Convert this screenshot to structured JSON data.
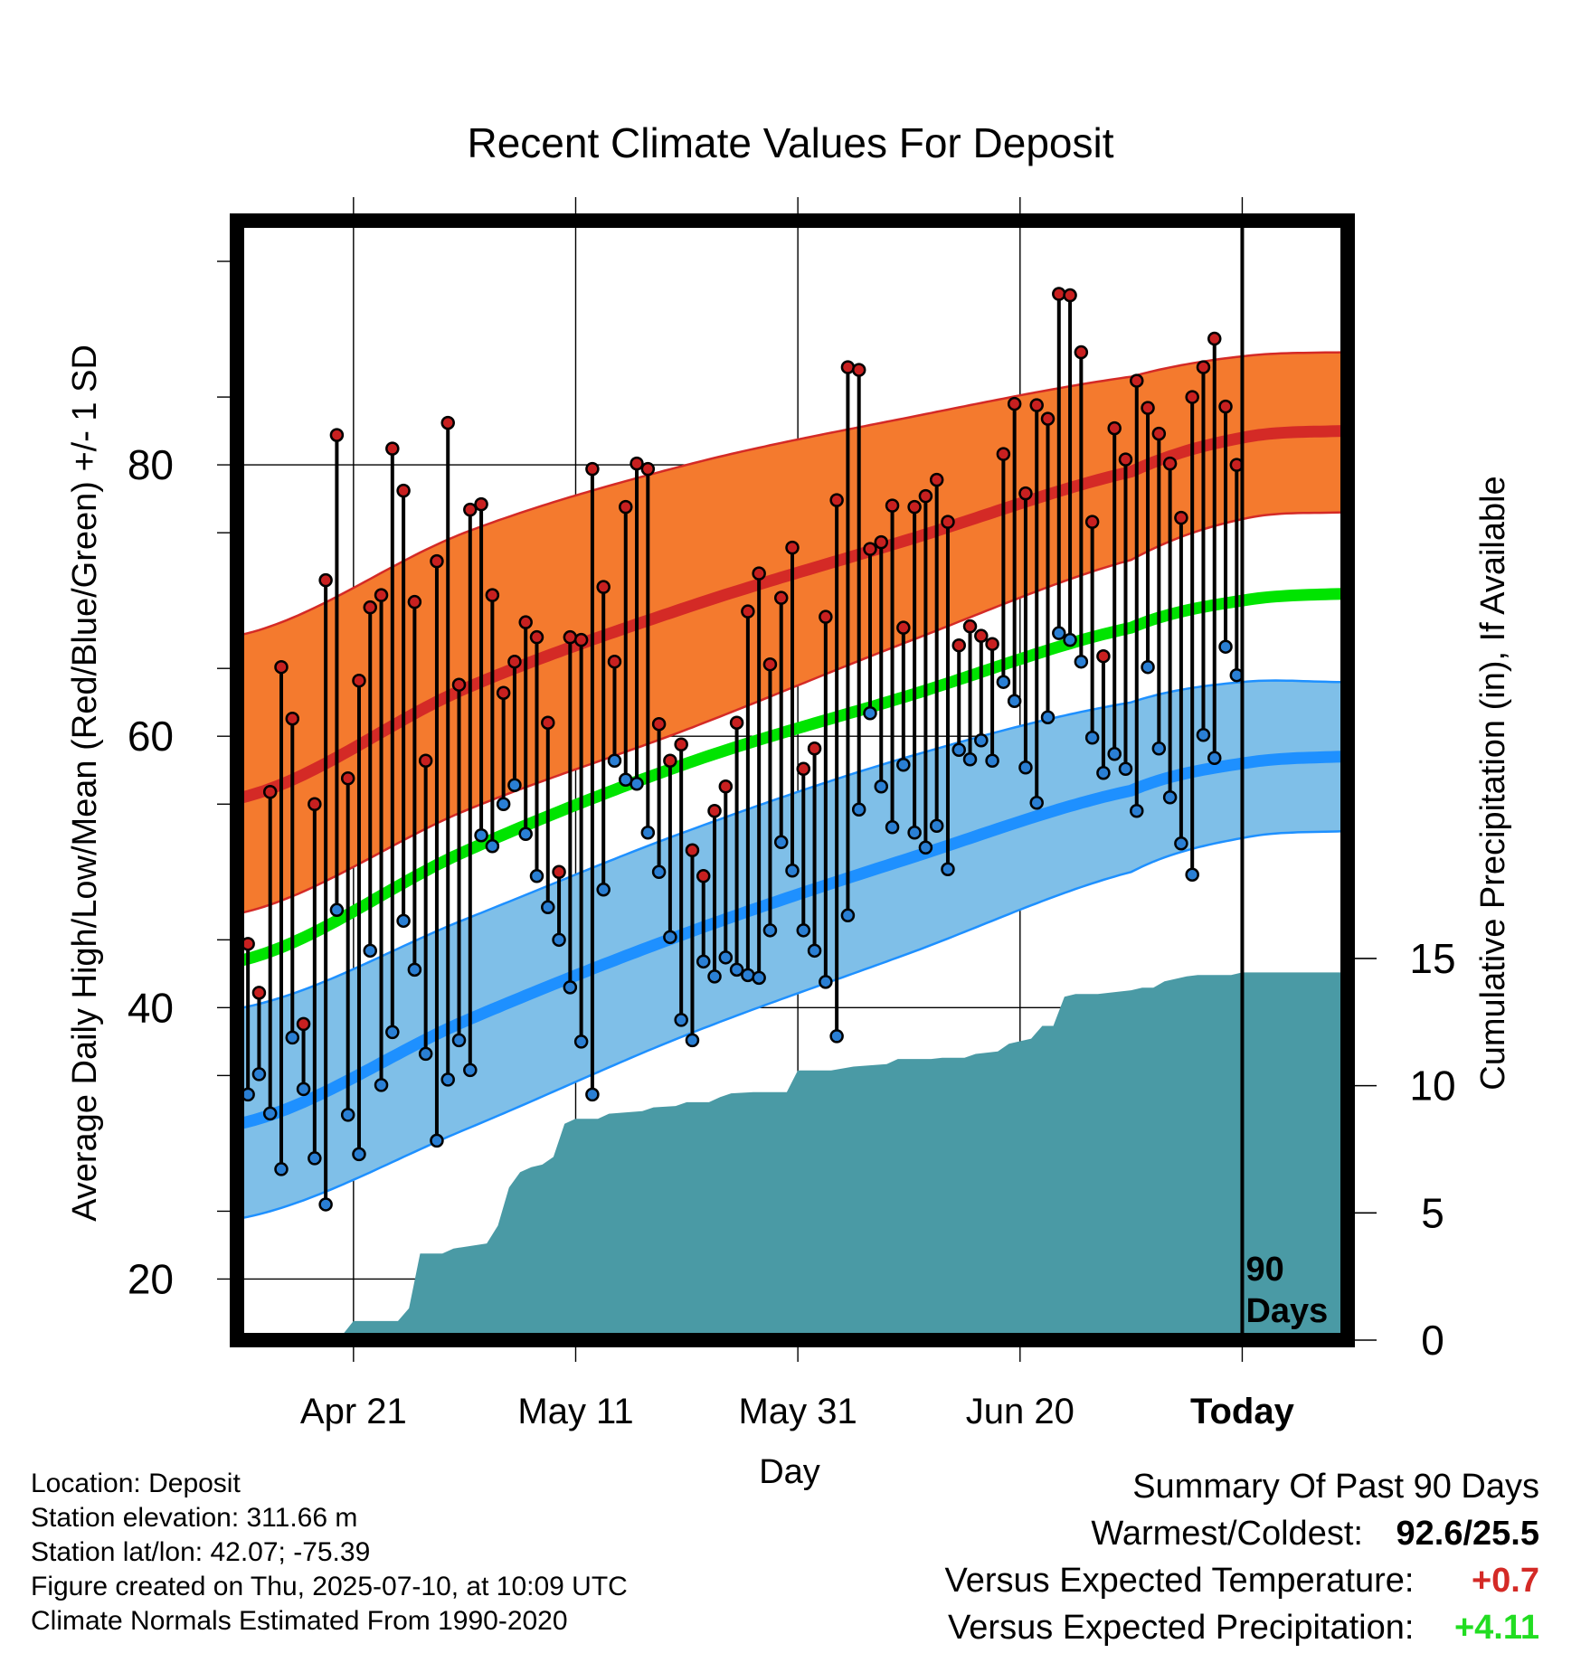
{
  "chart_data": {
    "type": "line",
    "title": "Recent Climate Values For Deposit",
    "xlabel": "Day",
    "ylabel": "Average Daily High/Low/Mean (Red/Blue/Green) +/- 1 SD",
    "y2label": "Cumulative Precipitation (in), If Available",
    "ylim": [
      15.5,
      98
    ],
    "y2lim": [
      0,
      44
    ],
    "yticks": [
      20,
      40,
      60,
      80
    ],
    "y2ticks": [
      0,
      5,
      10,
      15
    ],
    "x_range_days": [
      -90,
      9
    ],
    "xticks": [
      {
        "day": -80,
        "label": "Apr 21"
      },
      {
        "day": -60,
        "label": "May 11"
      },
      {
        "day": -40,
        "label": "May 31"
      },
      {
        "day": -20,
        "label": "Jun 20"
      },
      {
        "day": 0,
        "label": "Today"
      }
    ],
    "today_marker_label": "90 Days",
    "grid": true,
    "colors": {
      "high_band": "#f47a2e",
      "high_line": "#d42a26",
      "low_band": "#7fbfe8",
      "low_line": "#1e90ff",
      "mean_line": "#00e400",
      "precip": "#4a9aa5",
      "high_marker": "#c82020",
      "low_marker": "#2a7fd4"
    },
    "normals": {
      "days": [
        -90,
        -70,
        -50,
        -30,
        -10,
        0,
        9
      ],
      "normal_high": [
        55.5,
        63.5,
        69.5,
        74.5,
        79.5,
        82,
        82.5
      ],
      "normal_high_upper": [
        67.5,
        75.0,
        80.0,
        83.5,
        86.5,
        88,
        88.3
      ],
      "normal_high_lower": [
        47.0,
        54.5,
        60.5,
        67.0,
        73.0,
        76.0,
        76.5
      ],
      "normal_mean": [
        43.5,
        51.5,
        58.0,
        63.0,
        68.0,
        70.0,
        70.5
      ],
      "normal_low": [
        31.5,
        39.0,
        45.5,
        51.0,
        56.0,
        58.0,
        58.5
      ],
      "normal_low_upper": [
        40.0,
        46.5,
        53.0,
        58.5,
        62.5,
        64.0,
        64.0
      ],
      "normal_low_lower": [
        24.5,
        31.0,
        38.0,
        44.0,
        50.0,
        52.5,
        53.0
      ]
    },
    "daily_high": [
      44.7,
      41.1,
      55.9,
      65.1,
      61.3,
      38.8,
      55.0,
      71.5,
      82.2,
      56.9,
      64.1,
      69.5,
      70.4,
      81.2,
      78.1,
      69.9,
      58.2,
      72.9,
      83.1,
      63.8,
      76.7,
      77.1,
      70.4,
      63.2,
      65.5,
      68.4,
      67.3,
      61.0,
      50.0,
      67.3,
      67.1,
      79.7,
      71.0,
      65.5,
      76.9,
      80.1,
      79.7,
      60.9,
      58.2,
      59.4,
      51.6,
      49.7,
      54.5,
      56.3,
      61.0,
      69.2,
      72.0,
      65.3,
      70.2,
      73.9,
      57.6,
      59.1,
      68.8,
      77.4,
      87.2,
      87.0,
      73.8,
      74.3,
      77.0,
      68.0,
      76.9,
      77.7,
      78.9,
      75.8,
      66.7,
      68.1,
      67.4,
      66.8,
      80.8,
      84.5,
      77.9,
      84.4,
      83.4,
      92.6,
      92.5,
      88.3,
      75.8,
      65.9,
      82.7,
      80.4,
      86.2,
      84.2,
      82.3,
      80.1,
      76.1,
      85.0,
      87.2,
      89.3,
      84.3,
      80.0
    ],
    "daily_low": [
      33.6,
      35.1,
      32.2,
      28.1,
      37.8,
      34.0,
      28.9,
      25.5,
      47.2,
      32.1,
      29.2,
      44.2,
      34.3,
      38.2,
      46.4,
      42.8,
      36.6,
      30.2,
      34.7,
      37.6,
      35.4,
      52.7,
      51.9,
      55.0,
      56.4,
      52.8,
      49.7,
      47.4,
      45.0,
      41.5,
      37.5,
      33.6,
      48.7,
      58.2,
      56.8,
      56.5,
      52.9,
      50.0,
      45.2,
      39.1,
      37.6,
      43.4,
      42.3,
      43.7,
      42.8,
      42.4,
      42.2,
      45.7,
      52.2,
      50.1,
      45.7,
      44.2,
      41.9,
      37.9,
      46.8,
      54.6,
      61.7,
      56.3,
      53.3,
      57.9,
      52.9,
      51.8,
      53.4,
      50.2,
      59.0,
      58.3,
      59.7,
      58.2,
      64.0,
      62.6,
      57.7,
      55.1,
      61.4,
      67.6,
      67.1,
      65.5,
      59.9,
      57.3,
      58.7,
      57.6,
      54.5,
      65.1,
      59.1,
      55.5,
      52.1,
      49.8,
      60.1,
      58.4,
      66.6,
      64.5
    ],
    "cumulative_precip": [
      [
        -90,
        0
      ],
      [
        -85,
        0
      ],
      [
        -84,
        0.2
      ],
      [
        -81,
        0.2
      ],
      [
        -80,
        0.75
      ],
      [
        -76,
        0.75
      ],
      [
        -75,
        1.25
      ],
      [
        -74,
        3.4
      ],
      [
        -72,
        3.4
      ],
      [
        -71,
        3.6
      ],
      [
        -68,
        3.8
      ],
      [
        -67,
        4.5
      ],
      [
        -66,
        6.0
      ],
      [
        -65,
        6.6
      ],
      [
        -64,
        6.8
      ],
      [
        -63,
        6.9
      ],
      [
        -62,
        7.2
      ],
      [
        -61,
        8.5
      ],
      [
        -60,
        8.7
      ],
      [
        -58,
        8.7
      ],
      [
        -57,
        8.9
      ],
      [
        -54,
        9.0
      ],
      [
        -53,
        9.15
      ],
      [
        -51,
        9.2
      ],
      [
        -50,
        9.35
      ],
      [
        -48,
        9.35
      ],
      [
        -47,
        9.55
      ],
      [
        -46,
        9.7
      ],
      [
        -44,
        9.75
      ],
      [
        -41,
        9.75
      ],
      [
        -40,
        10.6
      ],
      [
        -37,
        10.6
      ],
      [
        -35,
        10.75
      ],
      [
        -32,
        10.85
      ],
      [
        -31,
        11.05
      ],
      [
        -28,
        11.05
      ],
      [
        -27,
        11.1
      ],
      [
        -25,
        11.1
      ],
      [
        -24,
        11.25
      ],
      [
        -22,
        11.35
      ],
      [
        -21,
        11.65
      ],
      [
        -19,
        11.85
      ],
      [
        -18,
        12.35
      ],
      [
        -17,
        12.35
      ],
      [
        -16,
        13.5
      ],
      [
        -15,
        13.6
      ],
      [
        -13,
        13.6
      ],
      [
        -11,
        13.7
      ],
      [
        -10,
        13.75
      ],
      [
        -9,
        13.85
      ],
      [
        -8,
        13.85
      ],
      [
        -7,
        14.1
      ],
      [
        -5,
        14.3
      ],
      [
        -4,
        14.35
      ],
      [
        -1,
        14.35
      ],
      [
        0,
        14.45
      ],
      [
        9,
        14.45
      ]
    ]
  },
  "footer_left": {
    "location": "Location: Deposit",
    "elevation": "Station elevation: 311.66 m",
    "latlon": "Station lat/lon: 42.07; -75.39",
    "created": "Figure created on Thu, 2025-07-10, at 10:09 UTC",
    "normals": "Climate Normals Estimated From 1990-2020"
  },
  "summary": {
    "heading": "Summary Of Past 90 Days",
    "warm_cold_label": "Warmest/Coldest:",
    "warm_cold_value": "92.6/25.5",
    "temp_label": "Versus Expected Temperature:",
    "temp_value": "+0.7",
    "temp_color": "#d42a26",
    "precip_label": "Versus Expected Precipitation:",
    "precip_value": "+4.11",
    "precip_color": "#22dd22"
  }
}
